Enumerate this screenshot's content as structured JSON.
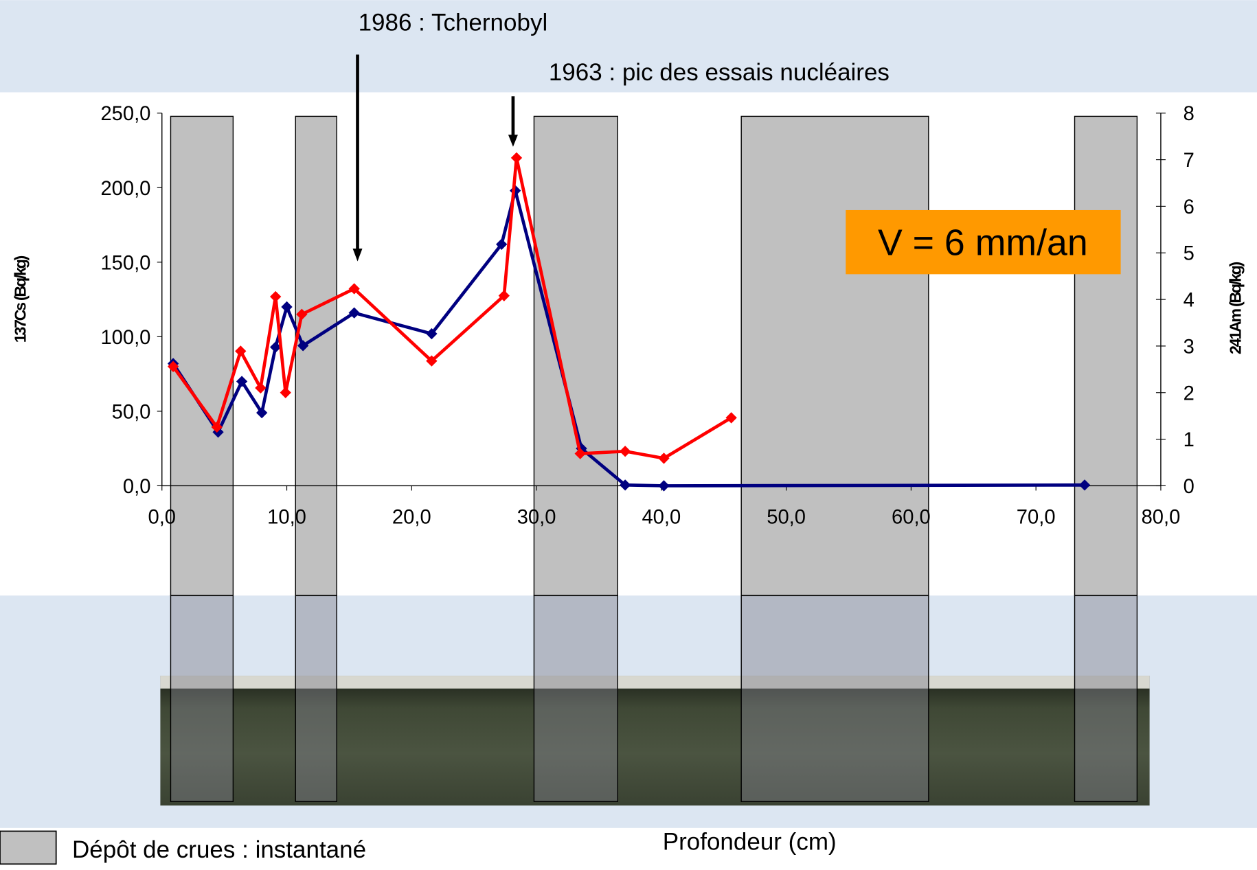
{
  "chart_data": {
    "type": "line",
    "x_label": "Profondeur (cm)",
    "y_label": "137Cs (Bq/kg)",
    "y2_label": "241Am (Bq/kg)",
    "xlim": [
      0,
      80
    ],
    "xticks": [
      {
        "value": 0,
        "label": "0,0"
      },
      {
        "value": 10,
        "label": "10,0"
      },
      {
        "value": 20,
        "label": "20,0"
      },
      {
        "value": 30,
        "label": "30,0"
      },
      {
        "value": 40,
        "label": "40,0"
      },
      {
        "value": 50,
        "label": "50,0"
      },
      {
        "value": 60,
        "label": "60,0"
      },
      {
        "value": 70,
        "label": "70,0"
      },
      {
        "value": 80,
        "label": "80,0"
      }
    ],
    "ylim": [
      0,
      250
    ],
    "yticks": [
      {
        "value": 0,
        "label": "0,0"
      },
      {
        "value": 50,
        "label": "50,0"
      },
      {
        "value": 100,
        "label": "100,0"
      },
      {
        "value": 150,
        "label": "150,0"
      },
      {
        "value": 200,
        "label": "200,0"
      },
      {
        "value": 250,
        "label": "250,0"
      }
    ],
    "y2lim": [
      0,
      8
    ],
    "y2ticks": [
      0,
      1,
      2,
      3,
      4,
      5,
      6,
      7,
      8
    ],
    "series": [
      {
        "color": "#000080",
        "x": [
          0.9,
          4.5,
          6.4,
          8.0,
          9.1,
          10.0,
          11.3,
          15.4,
          21.6,
          27.2,
          28.3,
          33.6,
          37.1,
          40.2,
          73.9
        ],
        "values": [
          82,
          36,
          70,
          49,
          93,
          120,
          94,
          116,
          102,
          162,
          198,
          25,
          0.5,
          0,
          0.5
        ]
      },
      {
        "color": "#ff0000",
        "axis": "y2",
        "x": [
          0.9,
          4.4,
          6.3,
          7.9,
          9.1,
          9.9,
          11.2,
          15.4,
          21.6,
          27.4,
          28.4,
          33.5,
          37.1,
          40.2,
          45.6
        ],
        "values": [
          2.56,
          1.26,
          2.89,
          2.1,
          4.06,
          2.0,
          3.68,
          4.23,
          2.68,
          4.08,
          7.04,
          0.69,
          0.74,
          0.59,
          1.46
        ]
      }
    ],
    "flood_deposits": {
      "label": "Dépôt de crues : instantané",
      "color": "#c0c0c0",
      "ranges": [
        [
          0.7,
          5.7
        ],
        [
          10.7,
          14.0
        ],
        [
          29.8,
          36.5
        ],
        [
          46.4,
          61.4
        ],
        [
          73.1,
          78.1
        ]
      ]
    },
    "annotations": [
      "1986 : Tchernobyl",
      "1963 : pic des essais nucléaires",
      "V = 6 mm/an"
    ]
  }
}
